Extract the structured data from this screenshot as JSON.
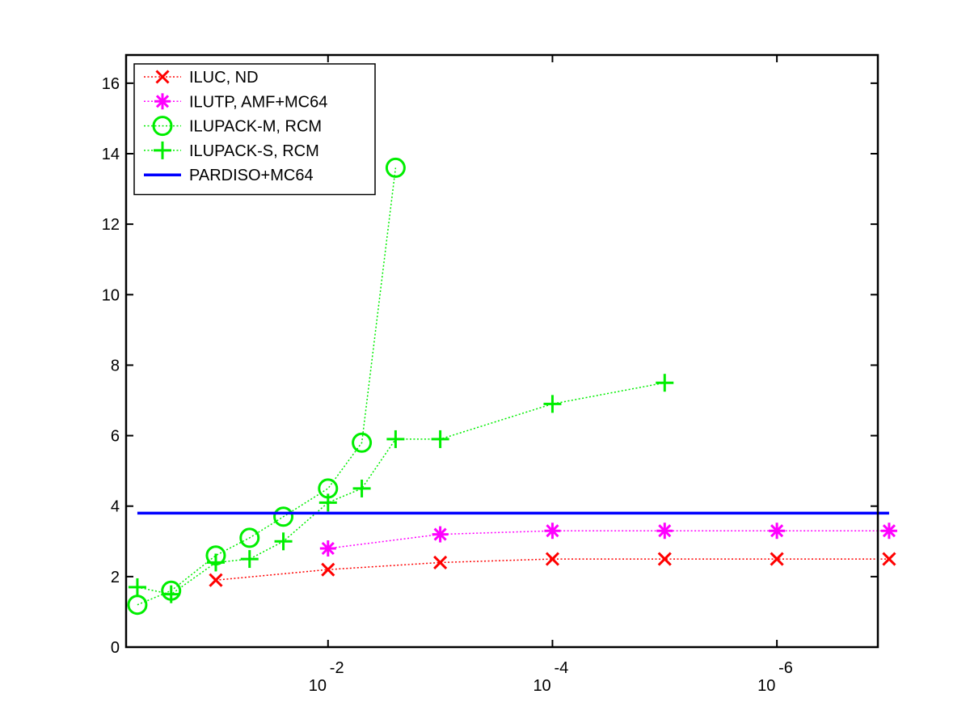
{
  "chart_data": {
    "type": "line",
    "title": "",
    "xlabel": "",
    "ylabel": "",
    "x_scale": "log",
    "x_reversed": true,
    "xlim": [
      0.63,
      1.26e-07
    ],
    "ylim": [
      0,
      16.8
    ],
    "grid": false,
    "legend_position": "top-left",
    "x_ticks": [
      {
        "value": 0.01,
        "base": "10",
        "exp": "-2"
      },
      {
        "value": 0.0001,
        "base": "10",
        "exp": "-4"
      },
      {
        "value": 1e-06,
        "base": "10",
        "exp": "-6"
      }
    ],
    "y_ticks": [
      "0",
      "2",
      "4",
      "6",
      "8",
      "10",
      "12",
      "14",
      "16"
    ],
    "series": [
      {
        "name": "ILUC,  ND",
        "color": "#ff0000",
        "marker": "x",
        "line": "dotted",
        "points": [
          [
            0.1,
            1.9
          ],
          [
            0.01,
            2.2
          ],
          [
            0.001,
            2.4
          ],
          [
            0.0001,
            2.5
          ],
          [
            1e-05,
            2.5
          ],
          [
            1e-06,
            2.5
          ],
          [
            1e-07,
            2.5
          ]
        ]
      },
      {
        "name": "ILUTP, AMF+MC64",
        "color": "#ff00ff",
        "marker": "asterisk",
        "line": "dotted",
        "points": [
          [
            0.01,
            2.8
          ],
          [
            0.001,
            3.2
          ],
          [
            0.0001,
            3.3
          ],
          [
            1e-05,
            3.3
          ],
          [
            1e-06,
            3.3
          ],
          [
            1e-07,
            3.3
          ]
        ]
      },
      {
        "name": "ILUPACK-M, RCM",
        "color": "#00ee00",
        "marker": "circle",
        "line": "dotted",
        "points": [
          [
            0.5,
            1.2
          ],
          [
            0.25,
            1.6
          ],
          [
            0.1,
            2.6
          ],
          [
            0.05,
            3.1
          ],
          [
            0.025,
            3.7
          ],
          [
            0.01,
            4.5
          ],
          [
            0.005,
            5.8
          ],
          [
            0.0025,
            13.6
          ]
        ]
      },
      {
        "name": "ILUPACK-S, RCM",
        "color": "#00ee00",
        "marker": "plus",
        "line": "dotted",
        "points": [
          [
            0.5,
            1.7
          ],
          [
            0.25,
            1.5
          ],
          [
            0.1,
            2.4
          ],
          [
            0.05,
            2.5
          ],
          [
            0.025,
            3.0
          ],
          [
            0.01,
            4.1
          ],
          [
            0.005,
            4.5
          ],
          [
            0.0025,
            5.9
          ],
          [
            0.001,
            5.9
          ],
          [
            0.0001,
            6.9
          ],
          [
            1e-05,
            7.5
          ]
        ]
      },
      {
        "name": "PARDISO+MC64",
        "color": "#0000ff",
        "marker": "none",
        "line": "solid",
        "points": [
          [
            0.5,
            3.8
          ],
          [
            1e-07,
            3.8
          ]
        ]
      }
    ]
  }
}
